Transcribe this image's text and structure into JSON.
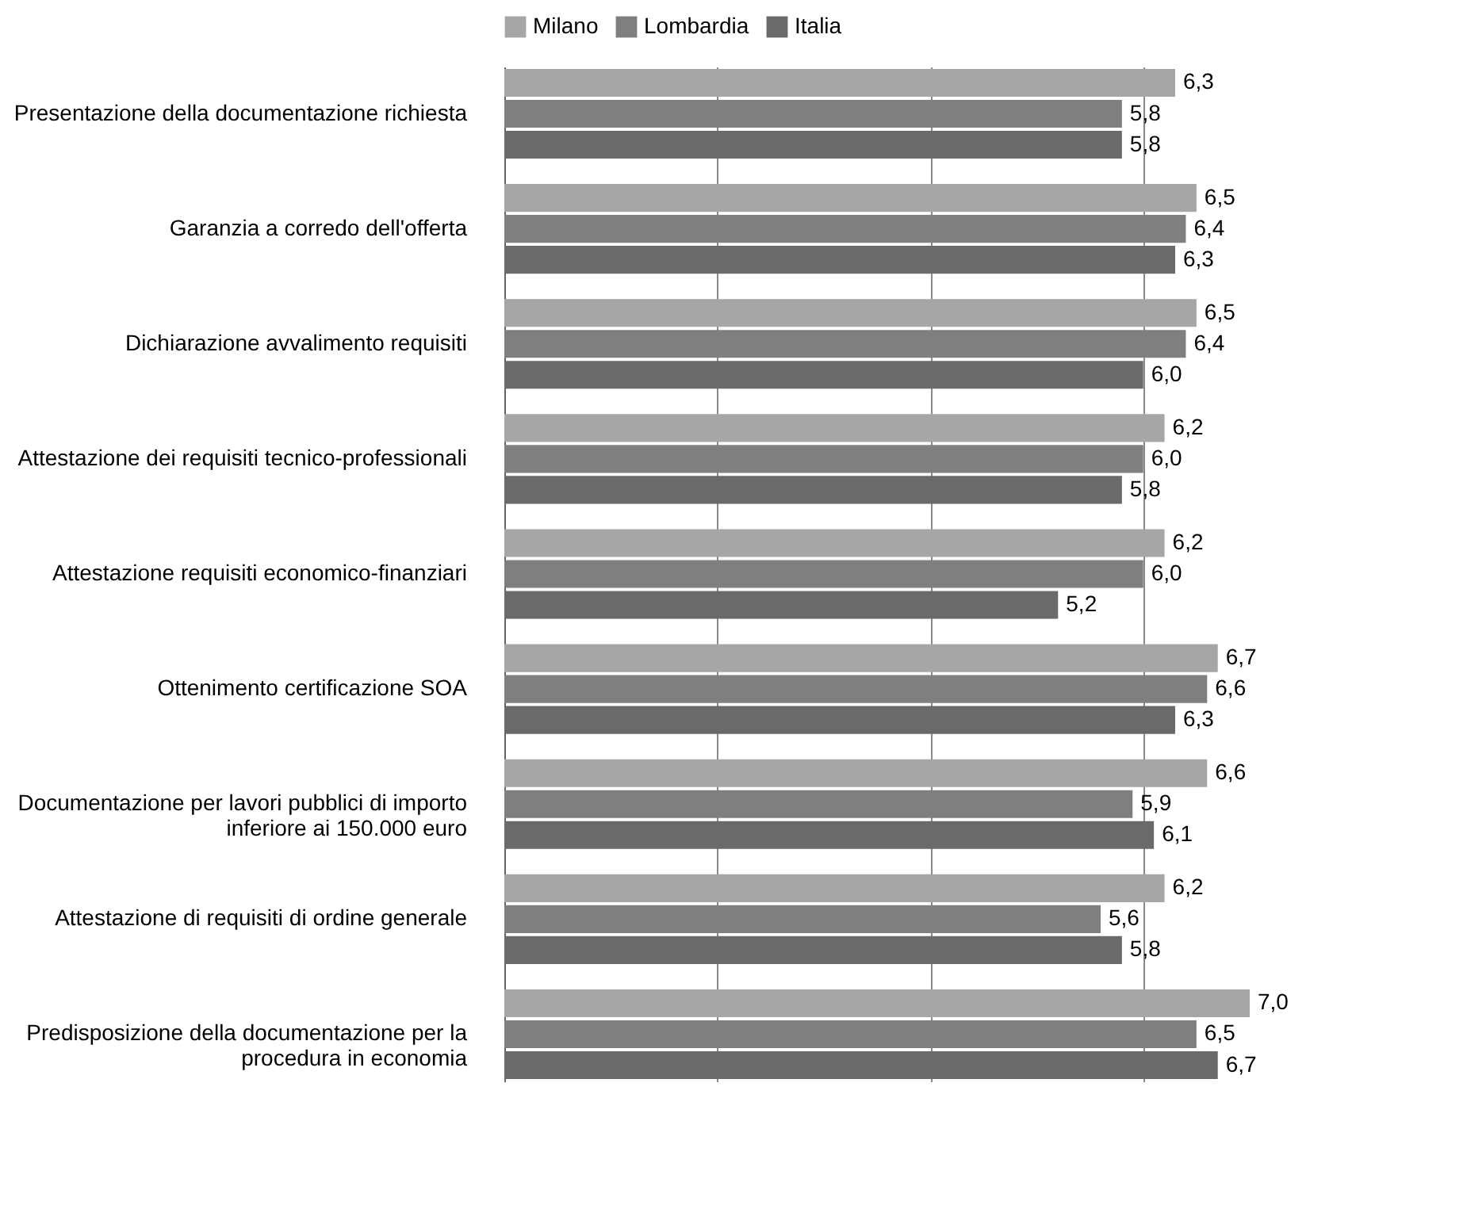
{
  "chart_data": {
    "type": "bar",
    "orientation": "horizontal",
    "categories": [
      "Presentazione della documentazione richiesta",
      "Garanzia a corredo dell'offerta",
      "Dichiarazione avvalimento requisiti",
      "Attestazione dei requisiti tecnico-professionali",
      "Attestazione requisiti economico-finanziari",
      "Ottenimento certificazione SOA",
      "Documentazione per lavori pubblici di importo inferiore ai 150.000 euro",
      "Attestazione di requisiti di ordine generale",
      "Predisposizione della documentazione per la procedura in economia"
    ],
    "series": [
      {
        "name": "Milano",
        "color": "#a6a6a6",
        "values": [
          6.3,
          6.5,
          6.5,
          6.2,
          6.2,
          6.7,
          6.6,
          6.2,
          7.0
        ],
        "value_labels": [
          "6,3",
          "6,5",
          "6,5",
          "6,2",
          "6,2",
          "6,7",
          "6,6",
          "6,2",
          "7,0"
        ]
      },
      {
        "name": "Lombardia",
        "color": "#7f7f7f",
        "values": [
          5.8,
          6.4,
          6.4,
          6.0,
          6.0,
          6.6,
          5.9,
          5.6,
          6.5
        ],
        "value_labels": [
          "5,8",
          "6,4",
          "6,4",
          "6,0",
          "6,0",
          "6,6",
          "5,9",
          "5,6",
          "6,5"
        ]
      },
      {
        "name": "Italia",
        "color": "#6a6a6a",
        "values": [
          5.8,
          6.3,
          6.0,
          5.8,
          5.2,
          6.3,
          6.1,
          5.8,
          6.7
        ],
        "value_labels": [
          "5,8",
          "6,3",
          "6,0",
          "5,8",
          "5,2",
          "6,3",
          "6,1",
          "5,8",
          "6,7"
        ]
      }
    ],
    "tick_labels": "y",
    "grid": "x",
    "legend": "top"
  }
}
